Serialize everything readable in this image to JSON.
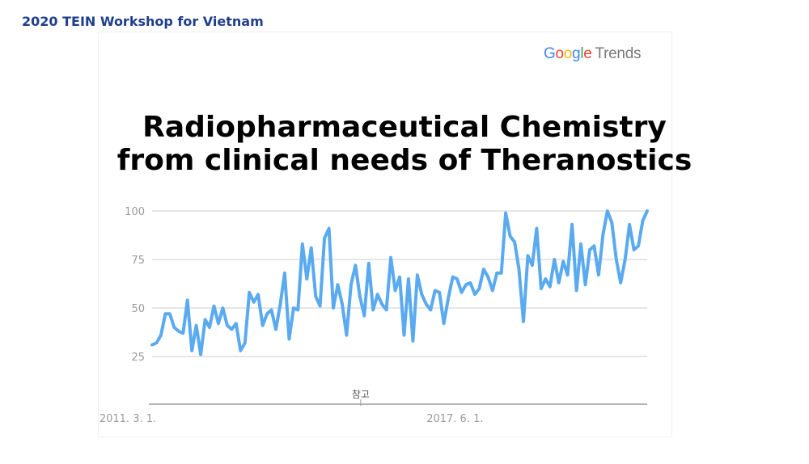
{
  "header": {
    "title": "2020 TEIN Workshop for Vietnam"
  },
  "logo": {
    "brand_letters": [
      "G",
      "o",
      "o",
      "g",
      "l",
      "e"
    ],
    "suffix": "Trends"
  },
  "slide": {
    "title_line1": "Radiopharmaceutical Chemistry",
    "title_line2": "from clinical needs of Theranostics"
  },
  "chart_data": {
    "type": "line",
    "y_ticks": [
      100,
      75,
      50,
      25
    ],
    "ylim": [
      0,
      100
    ],
    "x_tick_labels": [
      {
        "label": "2011. 3. 1.",
        "index": 0
      },
      {
        "label": "2017. 6. 1.",
        "index": 74
      }
    ],
    "annotation": {
      "label": "참고",
      "index": 60
    },
    "grid": true,
    "line_color": "#5aaaf0",
    "series": [
      {
        "values": [
          31,
          32,
          36,
          47,
          47,
          40,
          38,
          37,
          54,
          28,
          41,
          26,
          44,
          40,
          51,
          42,
          50,
          41,
          39,
          42,
          28,
          32,
          58,
          53,
          57,
          41,
          47,
          49,
          39,
          52,
          68,
          34,
          50,
          49,
          83,
          65,
          81,
          56,
          51,
          86,
          91,
          50,
          62,
          52,
          36,
          62,
          72,
          56,
          46,
          73,
          49,
          57,
          52,
          49,
          76,
          59,
          66,
          36,
          65,
          33,
          67,
          57,
          52,
          49,
          59,
          58,
          42,
          55,
          66,
          65,
          58,
          62,
          63,
          57,
          60,
          70,
          66,
          59,
          68,
          68,
          99,
          87,
          84,
          70,
          43,
          77,
          72,
          91,
          60,
          65,
          61,
          75,
          63,
          74,
          67,
          93,
          59,
          83,
          62,
          80,
          82,
          67,
          88,
          100,
          94,
          75,
          63,
          75,
          93,
          80,
          82,
          95,
          100
        ]
      }
    ]
  }
}
